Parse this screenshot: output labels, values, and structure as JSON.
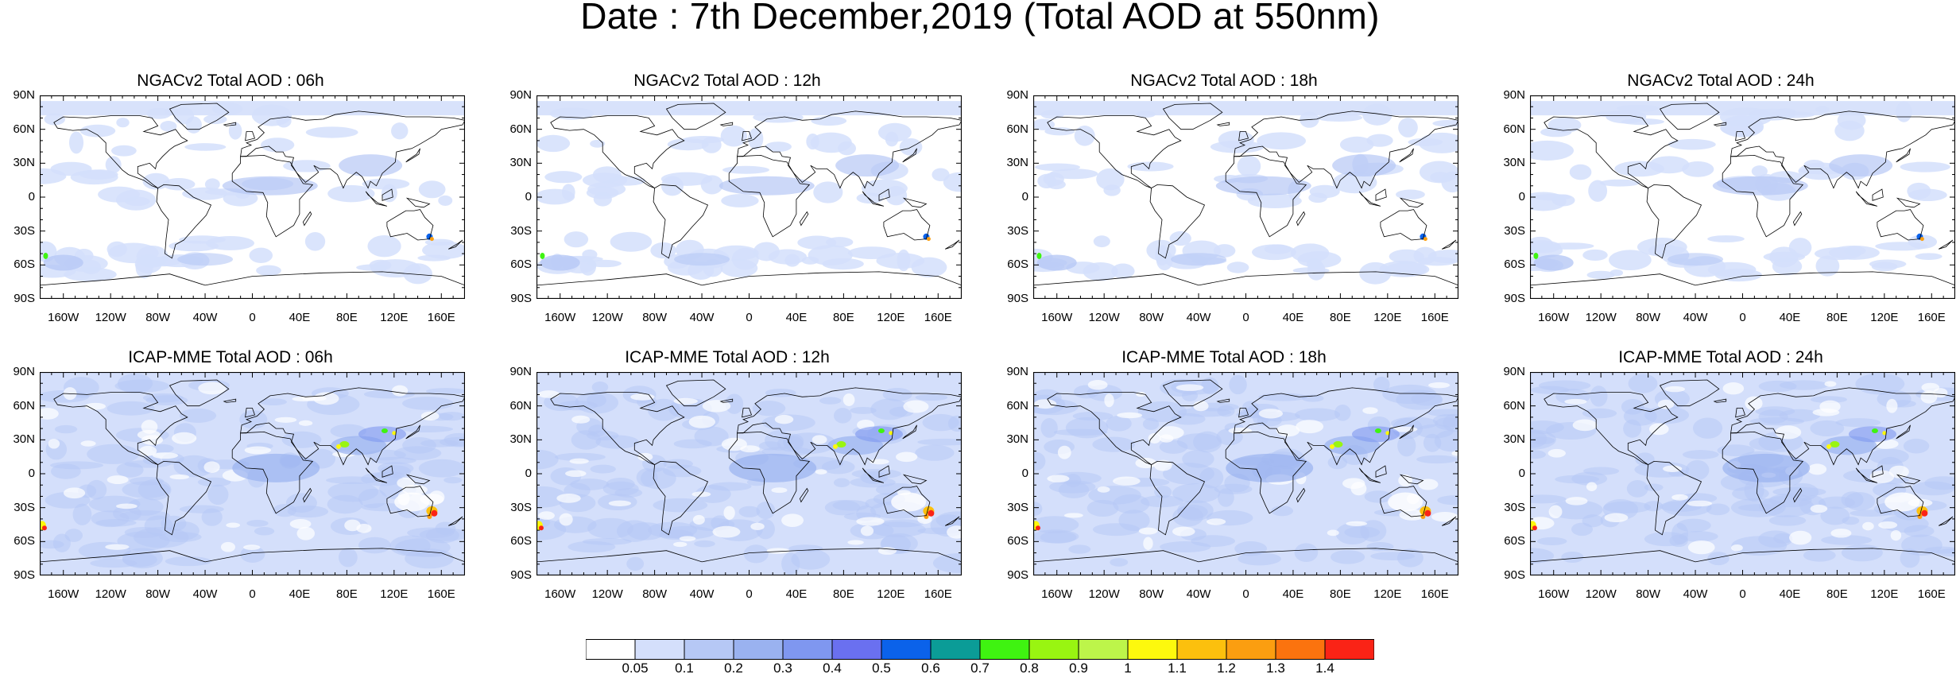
{
  "title": "Date : 7th December,2019 (Total AOD at 550nm)",
  "panels": [
    {
      "title": "NGACv2 Total AOD : 06h",
      "model": "NGACv2",
      "hour": "06h",
      "row": 0,
      "col": 0
    },
    {
      "title": "NGACv2 Total AOD : 12h",
      "model": "NGACv2",
      "hour": "12h",
      "row": 0,
      "col": 1
    },
    {
      "title": "NGACv2 Total AOD : 18h",
      "model": "NGACv2",
      "hour": "18h",
      "row": 0,
      "col": 2
    },
    {
      "title": "NGACv2 Total AOD : 24h",
      "model": "NGACv2",
      "hour": "24h",
      "row": 0,
      "col": 3
    },
    {
      "title": "ICAP-MME Total AOD : 06h",
      "model": "ICAP-MME",
      "hour": "06h",
      "row": 1,
      "col": 0
    },
    {
      "title": "ICAP-MME Total AOD : 12h",
      "model": "ICAP-MME",
      "hour": "12h",
      "row": 1,
      "col": 1
    },
    {
      "title": "ICAP-MME Total AOD : 18h",
      "model": "ICAP-MME",
      "hour": "18h",
      "row": 1,
      "col": 2
    },
    {
      "title": "ICAP-MME Total AOD : 24h",
      "model": "ICAP-MME",
      "hour": "24h",
      "row": 1,
      "col": 3
    }
  ],
  "axes": {
    "lat_labels": [
      "90N",
      "60N",
      "30N",
      "0",
      "30S",
      "60S",
      "90S"
    ],
    "lon_labels": [
      "160W",
      "120W",
      "80W",
      "40W",
      "0",
      "40E",
      "80E",
      "120E",
      "160E"
    ],
    "lon_values": [
      -160,
      -120,
      -80,
      -40,
      0,
      40,
      80,
      120,
      160
    ],
    "lat_values": [
      90,
      60,
      30,
      0,
      -30,
      -60,
      -90
    ],
    "lon_range": [
      -180,
      180
    ],
    "lat_range": [
      -90,
      90
    ]
  },
  "colorbar": {
    "labels": [
      "0.05",
      "0.1",
      "0.2",
      "0.3",
      "0.4",
      "0.5",
      "0.6",
      "0.7",
      "0.8",
      "0.9",
      "1",
      "1.1",
      "1.2",
      "1.3",
      "1.4"
    ],
    "colors": [
      "#ffffff",
      "#d4dffb",
      "#b6c8f5",
      "#9ab2f0",
      "#7f97f0",
      "#6a70f0",
      "#0b62ea",
      "#0b9c97",
      "#3ff311",
      "#99f511",
      "#bdf54a",
      "#fdf90d",
      "#fcc00d",
      "#fb9e10",
      "#fb730e",
      "#fa2316"
    ]
  },
  "colors": {
    "ocean_background": "#d4dffb",
    "land_outline": "#000000",
    "hotspot_high": "#fa2316",
    "hotspot_mid": "#fcc00d",
    "hotspot_green": "#3ff311"
  }
}
